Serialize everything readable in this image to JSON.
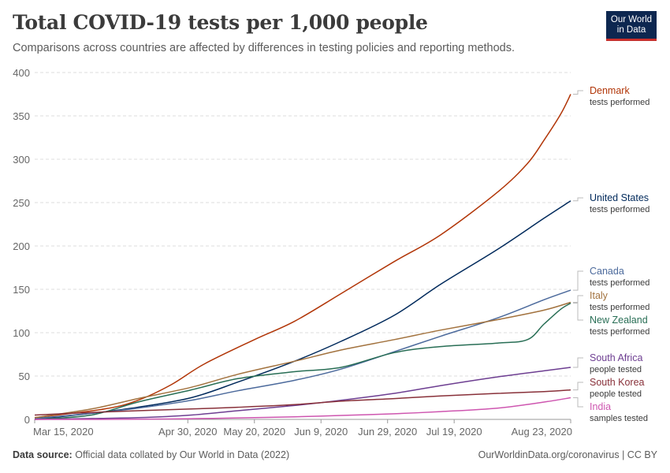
{
  "header": {
    "title": "Total COVID-19 tests per 1,000 people",
    "subtitle": "Comparisons across countries are affected by differences in testing policies and reporting methods.",
    "logo_line1": "Our World",
    "logo_line2": "in Data"
  },
  "footer": {
    "source_label": "Data source:",
    "source_text": "Official data collated by Our World in Data (2022)",
    "right_text": "OurWorldinData.org/coronavirus | CC BY"
  },
  "chart_data": {
    "type": "line",
    "title": "Total COVID-19 tests per 1,000 people",
    "ylim": [
      0,
      400
    ],
    "y_ticks": [
      0,
      50,
      100,
      150,
      200,
      250,
      300,
      350,
      400
    ],
    "y_tick_labels": [
      "0",
      "50",
      "100",
      "150",
      "200",
      "250",
      "300",
      "350",
      "400"
    ],
    "x_range": [
      "2020-03-15",
      "2020-08-23"
    ],
    "x_ticks": [
      "2020-03-15",
      "2020-04-30",
      "2020-05-20",
      "2020-06-09",
      "2020-06-29",
      "2020-07-19",
      "2020-08-23"
    ],
    "x_tick_labels": [
      "Mar 15, 2020",
      "Apr 30, 2020",
      "May 20, 2020",
      "Jun 9, 2020",
      "Jun 29, 2020",
      "Jul 19, 2020",
      "Aug 23, 2020"
    ],
    "grid": "horizontal dashed",
    "legend": "right, inline labels",
    "series": [
      {
        "name": "Denmark",
        "sub": "tests performed",
        "color": "#b13507",
        "x": [
          "2020-03-15",
          "2020-04-05",
          "2020-04-15",
          "2020-04-25",
          "2020-05-05",
          "2020-05-20",
          "2020-06-01",
          "2020-06-15",
          "2020-07-01",
          "2020-07-15",
          "2020-08-01",
          "2020-08-10",
          "2020-08-15",
          "2020-08-20",
          "2020-08-23"
        ],
        "y": [
          2,
          12,
          22,
          40,
          64,
          92,
          113,
          145,
          182,
          213,
          262,
          295,
          322,
          352,
          375
        ]
      },
      {
        "name": "United States",
        "sub": "tests performed",
        "color": "#00295b",
        "x": [
          "2020-03-15",
          "2020-04-01",
          "2020-04-15",
          "2020-05-01",
          "2020-05-15",
          "2020-06-01",
          "2020-06-15",
          "2020-07-01",
          "2020-07-15",
          "2020-08-01",
          "2020-08-15",
          "2020-08-23"
        ],
        "y": [
          0,
          7,
          14,
          25,
          43,
          67,
          90,
          120,
          156,
          196,
          232,
          252
        ]
      },
      {
        "name": "Canada",
        "sub": "tests performed",
        "color": "#4c6a9c",
        "x": [
          "2020-03-15",
          "2020-04-01",
          "2020-04-15",
          "2020-05-01",
          "2020-05-15",
          "2020-06-01",
          "2020-06-15",
          "2020-07-01",
          "2020-07-15",
          "2020-08-01",
          "2020-08-15",
          "2020-08-23"
        ],
        "y": [
          1,
          7,
          13,
          22,
          33,
          45,
          58,
          78,
          96,
          117,
          138,
          149
        ]
      },
      {
        "name": "Italy",
        "sub": "tests performed",
        "color": "#a2723e",
        "x": [
          "2020-03-15",
          "2020-04-01",
          "2020-04-15",
          "2020-05-01",
          "2020-05-15",
          "2020-06-01",
          "2020-06-15",
          "2020-07-01",
          "2020-07-15",
          "2020-08-01",
          "2020-08-15",
          "2020-08-23"
        ],
        "y": [
          2,
          12,
          24,
          37,
          52,
          67,
          80,
          92,
          103,
          115,
          126,
          135
        ]
      },
      {
        "name": "New Zealand",
        "sub": "tests performed",
        "color": "#286e55",
        "x": [
          "2020-03-15",
          "2020-04-01",
          "2020-04-15",
          "2020-05-01",
          "2020-05-15",
          "2020-06-01",
          "2020-06-15",
          "2020-07-01",
          "2020-07-15",
          "2020-08-01",
          "2020-08-10",
          "2020-08-15",
          "2020-08-20",
          "2020-08-23"
        ],
        "y": [
          0,
          5,
          20,
          34,
          47,
          55,
          60,
          77,
          84,
          88,
          92,
          110,
          127,
          134
        ]
      },
      {
        "name": "South Africa",
        "sub": "people tested",
        "color": "#6d3e91",
        "x": [
          "2020-03-15",
          "2020-04-01",
          "2020-04-15",
          "2020-05-01",
          "2020-05-15",
          "2020-06-01",
          "2020-06-15",
          "2020-07-01",
          "2020-07-15",
          "2020-08-01",
          "2020-08-15",
          "2020-08-23"
        ],
        "y": [
          0,
          1,
          2,
          5,
          10,
          16,
          22,
          30,
          39,
          49,
          56,
          60
        ]
      },
      {
        "name": "South Korea",
        "sub": "people tested",
        "color": "#883039",
        "x": [
          "2020-03-15",
          "2020-04-01",
          "2020-04-15",
          "2020-05-01",
          "2020-05-15",
          "2020-06-01",
          "2020-06-15",
          "2020-07-01",
          "2020-07-15",
          "2020-08-01",
          "2020-08-15",
          "2020-08-23"
        ],
        "y": [
          5,
          8,
          10,
          12,
          14,
          17,
          21,
          24,
          27,
          30,
          32,
          34
        ]
      },
      {
        "name": "India",
        "sub": "samples tested",
        "color": "#ce56b0",
        "x": [
          "2020-03-15",
          "2020-04-01",
          "2020-04-15",
          "2020-05-01",
          "2020-05-15",
          "2020-06-01",
          "2020-06-15",
          "2020-07-01",
          "2020-07-15",
          "2020-08-01",
          "2020-08-15",
          "2020-08-23"
        ],
        "y": [
          0,
          0,
          0.3,
          0.8,
          1.7,
          3,
          4.5,
          6.5,
          9,
          13,
          20,
          25
        ]
      }
    ]
  }
}
